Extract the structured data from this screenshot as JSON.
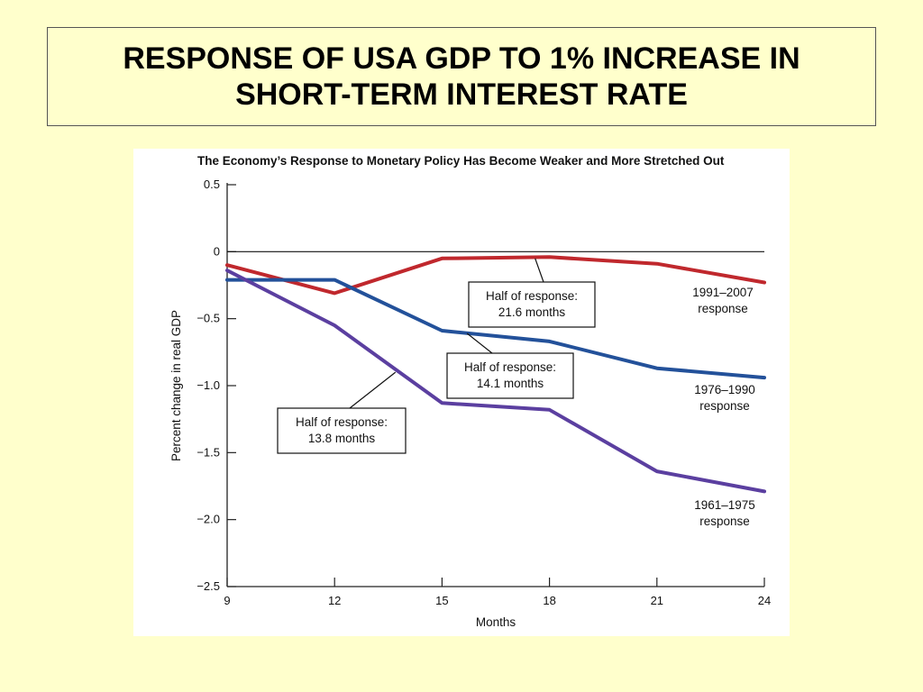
{
  "slide": {
    "title_line1": "RESPONSE OF USA GDP TO 1% INCREASE IN",
    "title_line2": "SHORT-TERM INTEREST RATE"
  },
  "chart_data": {
    "type": "line",
    "title": "The Economy’s Response to Monetary Policy Has Become Weaker and More Stretched Out",
    "xlabel": "Months",
    "ylabel": "Percent change in real GDP",
    "xlim": [
      9,
      24
    ],
    "ylim": [
      -2.5,
      0.5
    ],
    "x_ticks": [
      9,
      12,
      15,
      18,
      21,
      24
    ],
    "y_ticks": [
      0.5,
      0,
      -0.5,
      -1.0,
      -1.5,
      -2.0,
      -2.5
    ],
    "y_tick_labels": [
      "0.5",
      "0",
      "−0.5",
      "−1.0",
      "−1.5",
      "−2.0",
      "−2.5"
    ],
    "zero_line": true,
    "grid": false,
    "series": [
      {
        "label_line1": "1991–2007",
        "label_line2": "response",
        "color": "#C0282D",
        "points": [
          [
            9,
            -0.1
          ],
          [
            12,
            -0.31
          ],
          [
            15,
            -0.05
          ],
          [
            18,
            -0.04
          ],
          [
            21,
            -0.09
          ],
          [
            24,
            -0.23
          ]
        ]
      },
      {
        "label_line1": "1976–1990",
        "label_line2": "response",
        "color": "#23519A",
        "points": [
          [
            9,
            -0.21
          ],
          [
            12,
            -0.21
          ],
          [
            15,
            -0.59
          ],
          [
            18,
            -0.67
          ],
          [
            21,
            -0.87
          ],
          [
            24,
            -0.94
          ]
        ]
      },
      {
        "label_line1": "1961–1975",
        "label_line2": "response",
        "color": "#5B3FA0",
        "points": [
          [
            9,
            -0.14
          ],
          [
            12,
            -0.55
          ],
          [
            15,
            -1.13
          ],
          [
            18,
            -1.18
          ],
          [
            21,
            -1.64
          ],
          [
            24,
            -1.79
          ]
        ]
      }
    ],
    "annotations": [
      {
        "line1": "Half of response:",
        "line2": "21.6 months",
        "series_index": 0,
        "anchor": [
          17.6,
          -0.05
        ]
      },
      {
        "line1": "Half of response:",
        "line2": "14.1 months",
        "series_index": 1,
        "anchor": [
          15.7,
          -0.61
        ]
      },
      {
        "line1": "Half of response:",
        "line2": "13.8 months",
        "series_index": 2,
        "anchor": [
          13.7,
          -0.9
        ]
      }
    ]
  }
}
